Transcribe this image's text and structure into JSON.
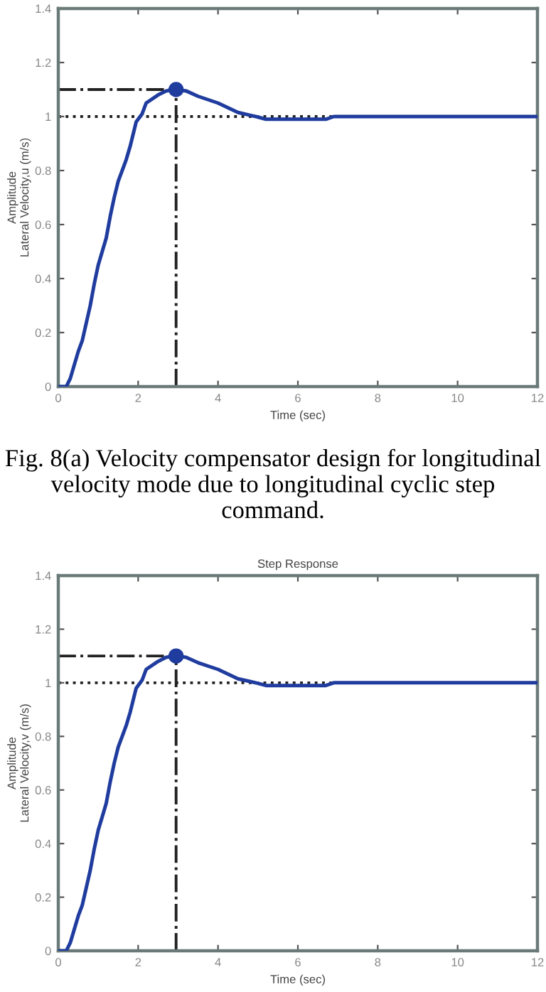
{
  "chart_data": [
    {
      "type": "line",
      "xlabel": "Time (sec)",
      "ylabel": "Amplitude\nLateral Velocity,u (m/s)",
      "xlim": [
        0,
        12
      ],
      "ylim": [
        0,
        1.4
      ],
      "xticks": [
        0,
        2,
        4,
        6,
        8,
        10,
        12
      ],
      "yticks": [
        0,
        0.2,
        0.4,
        0.6,
        0.8,
        1,
        1.2,
        1.4
      ],
      "grid": false,
      "annotations": [
        "Fig. 8(a) Velocity compensator design for longitudinal velocity mode due to longitudinal cyclic step command."
      ],
      "ref_lines": [
        {
          "axis": "y",
          "value": 1,
          "line_style": "dotted",
          "color": "#222222"
        },
        {
          "axis": "y",
          "value": 1.1,
          "line_style": "dashdot",
          "color": "#222222"
        },
        {
          "axis": "x",
          "value": 2.95,
          "line_style": "dashdot",
          "color": "#222222"
        }
      ],
      "series": [
        {
          "color": "#1f3c9e",
          "x": [
            0,
            0.2,
            0.3,
            0.5,
            0.6,
            0.8,
            0.9,
            1.0,
            1.1,
            1.2,
            1.3,
            1.4,
            1.5,
            1.7,
            1.8,
            1.95,
            2.1,
            2.2,
            2.5,
            2.7,
            2.95,
            3.2,
            3.5,
            4.0,
            4.5,
            4.8,
            5.0,
            5.2,
            6.0,
            6.7,
            6.9,
            12
          ],
          "values": [
            0,
            0,
            0.03,
            0.13,
            0.17,
            0.3,
            0.38,
            0.45,
            0.5,
            0.55,
            0.63,
            0.7,
            0.76,
            0.84,
            0.89,
            0.98,
            1.01,
            1.05,
            1.08,
            1.095,
            1.1,
            1.095,
            1.075,
            1.05,
            1.015,
            1.005,
            0.998,
            0.99,
            0.99,
            0.99,
            1.0,
            1.0
          ]
        },
        {
          "type": "scatter",
          "color": "#1f3c9e",
          "marker": "circle",
          "x": [
            2.95
          ],
          "values": [
            1.1
          ]
        }
      ]
    },
    {
      "type": "line",
      "title": "Step Response",
      "xlabel": "Time (sec)",
      "ylabel": "Amplitude\nLateral Velocity,v (m/s)",
      "xlim": [
        0,
        12
      ],
      "ylim": [
        0,
        1.4
      ],
      "xticks": [
        0,
        2,
        4,
        6,
        8,
        10,
        12
      ],
      "yticks": [
        0,
        0.2,
        0.4,
        0.6,
        0.8,
        1,
        1.2,
        1.4
      ],
      "grid": false,
      "ref_lines": [
        {
          "axis": "y",
          "value": 1,
          "line_style": "dotted",
          "color": "#222222"
        },
        {
          "axis": "y",
          "value": 1.1,
          "line_style": "dashdot",
          "color": "#222222"
        },
        {
          "axis": "x",
          "value": 2.95,
          "line_style": "dashdot",
          "color": "#222222"
        }
      ],
      "series": [
        {
          "color": "#1f3c9e",
          "x": [
            0,
            0.2,
            0.3,
            0.5,
            0.6,
            0.8,
            0.9,
            1.0,
            1.1,
            1.2,
            1.3,
            1.4,
            1.5,
            1.7,
            1.8,
            1.95,
            2.1,
            2.2,
            2.5,
            2.7,
            2.95,
            3.2,
            3.5,
            4.0,
            4.5,
            4.8,
            5.0,
            5.2,
            6.0,
            6.7,
            6.9,
            12
          ],
          "values": [
            0,
            0,
            0.03,
            0.13,
            0.17,
            0.3,
            0.38,
            0.45,
            0.5,
            0.55,
            0.63,
            0.7,
            0.76,
            0.84,
            0.89,
            0.98,
            1.01,
            1.05,
            1.08,
            1.095,
            1.1,
            1.095,
            1.075,
            1.05,
            1.015,
            1.005,
            0.998,
            0.99,
            0.99,
            0.99,
            1.0,
            1.0
          ]
        },
        {
          "type": "scatter",
          "color": "#1f3c9e",
          "marker": "circle",
          "x": [
            2.95
          ],
          "values": [
            1.1
          ]
        }
      ]
    }
  ]
}
